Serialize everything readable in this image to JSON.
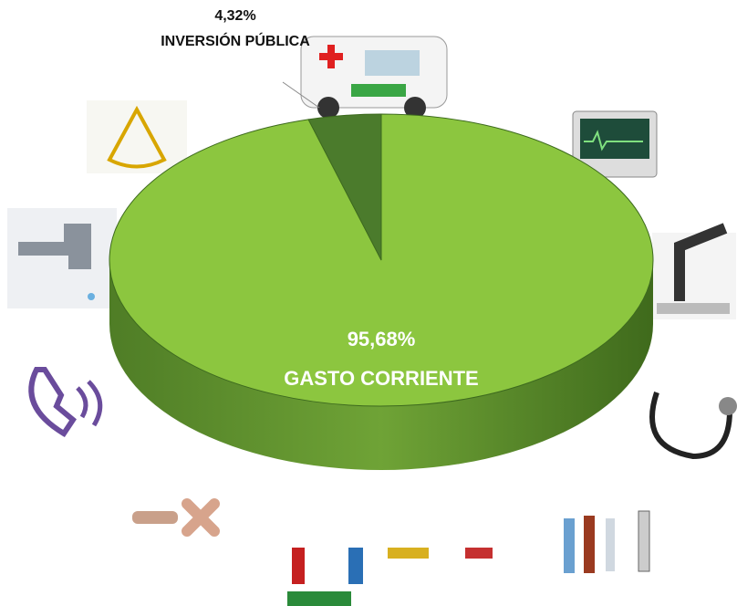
{
  "chart_data": {
    "type": "pie",
    "categories": [
      "GASTO CORRIENTE",
      "INVERSIÓN PÚBLICA"
    ],
    "values": [
      95.68,
      4.32
    ],
    "value_labels": [
      "95,68%",
      "4,32%"
    ],
    "colors": [
      "#8cc63f",
      "#4b7b2c"
    ]
  }
}
